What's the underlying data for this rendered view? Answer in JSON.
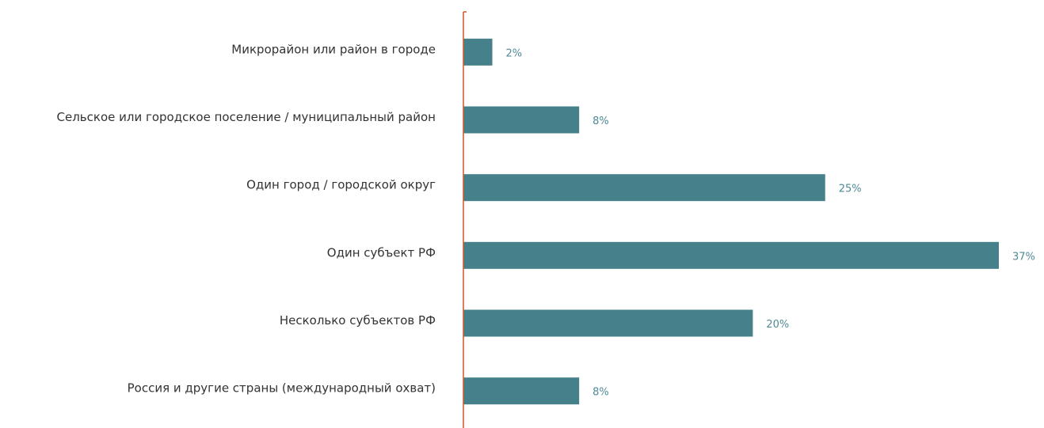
{
  "chart_data": {
    "type": "bar",
    "orientation": "horizontal",
    "categories": [
      "Микрорайон или район в городе",
      "Сельское или городское поселение / муниципальный район",
      "Один город / городской округ",
      "Один субъект РФ",
      "Несколько субъектов РФ",
      "Россия и другие страны (международный охват)"
    ],
    "values": [
      2,
      8,
      25,
      37,
      20,
      8
    ],
    "value_labels": [
      "2%",
      "8%",
      "25%",
      "37%",
      "20%",
      "8%"
    ],
    "color": "#46818b",
    "axis_color": "#d9532c"
  }
}
